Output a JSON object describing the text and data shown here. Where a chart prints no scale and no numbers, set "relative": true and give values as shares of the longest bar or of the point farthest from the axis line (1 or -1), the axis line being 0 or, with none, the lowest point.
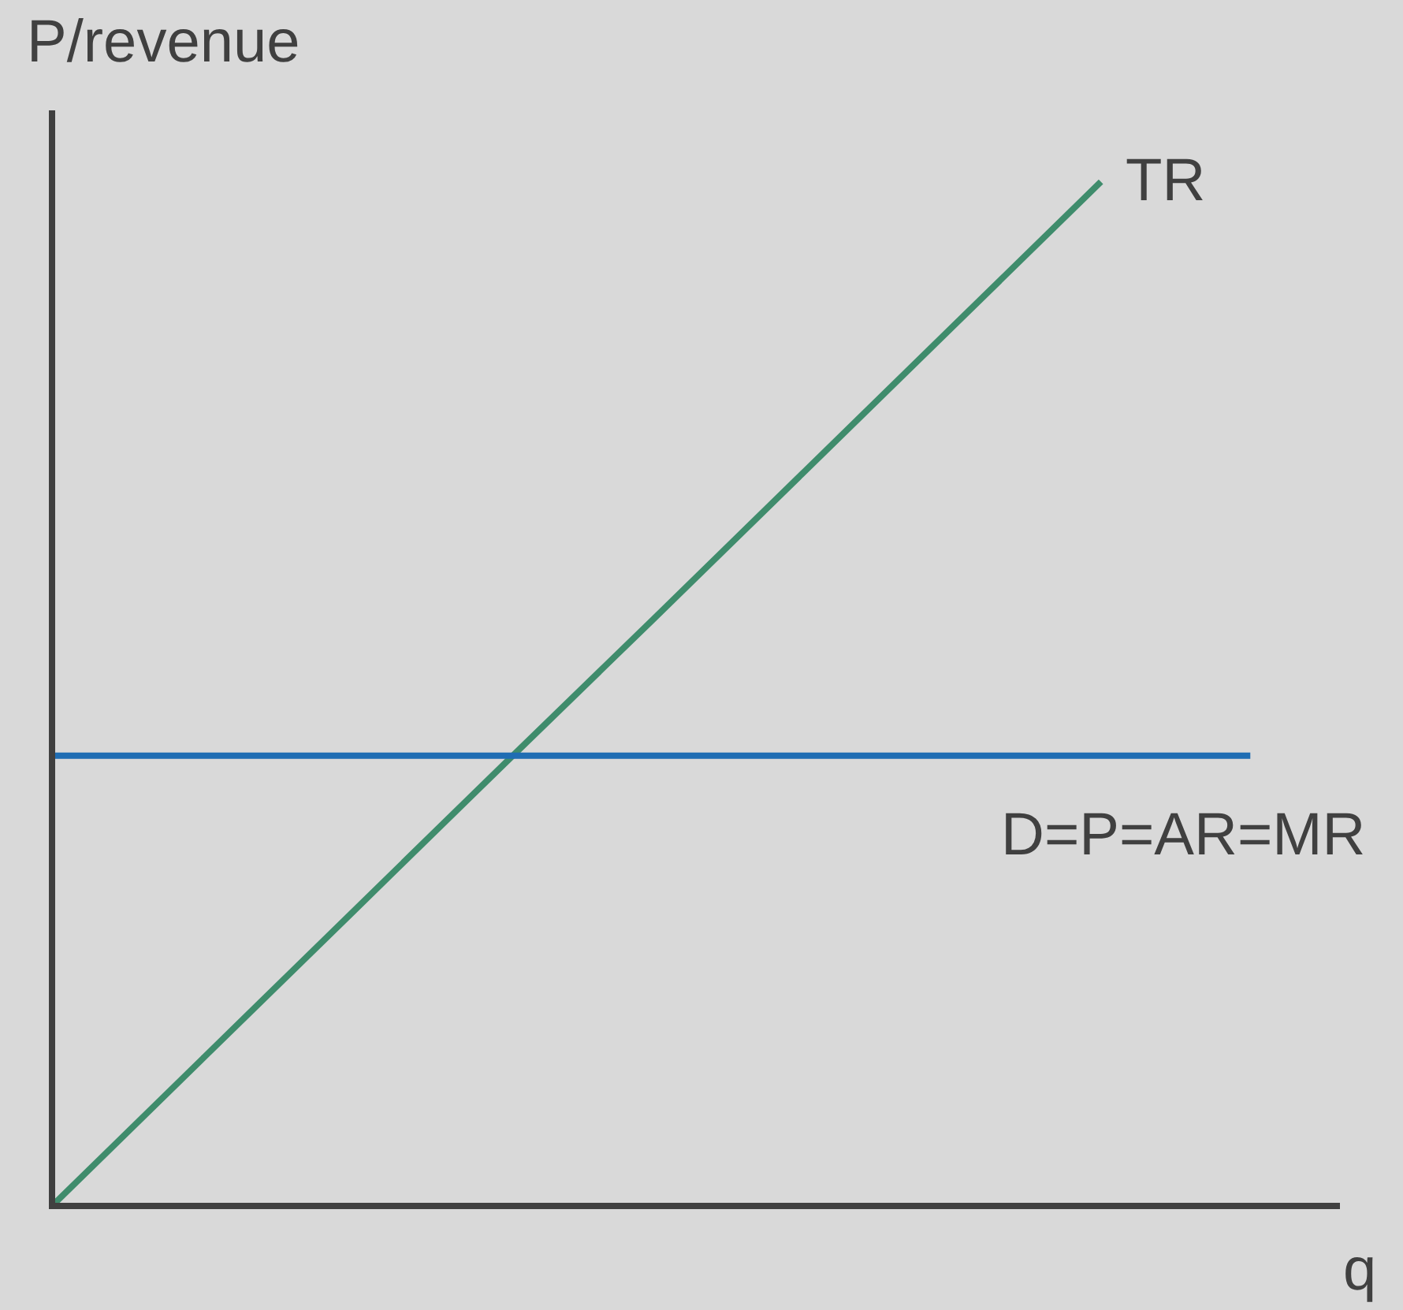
{
  "chart_data": {
    "type": "line",
    "relative": true,
    "xlabel": "q",
    "ylabel": "P/revenue",
    "categories": [
      null,
      null,
      null,
      null,
      null,
      null,
      null,
      null,
      null
    ],
    "series": [
      {
        "name": "TR",
        "color": "#3f8c6c",
        "values": [
          0,
          0.143,
          0.286,
          0.429,
          0.571,
          0.714,
          0.857,
          1,
          null
        ]
      },
      {
        "name": "D=P=AR=MR",
        "color": "#1f6db3",
        "values": [
          0.438,
          0.438,
          0.438,
          0.438,
          0.438,
          0.438,
          0.438,
          0.438,
          0.438
        ]
      }
    ],
    "legend": false,
    "grid": false,
    "marker": "none",
    "line_style": "solid"
  }
}
